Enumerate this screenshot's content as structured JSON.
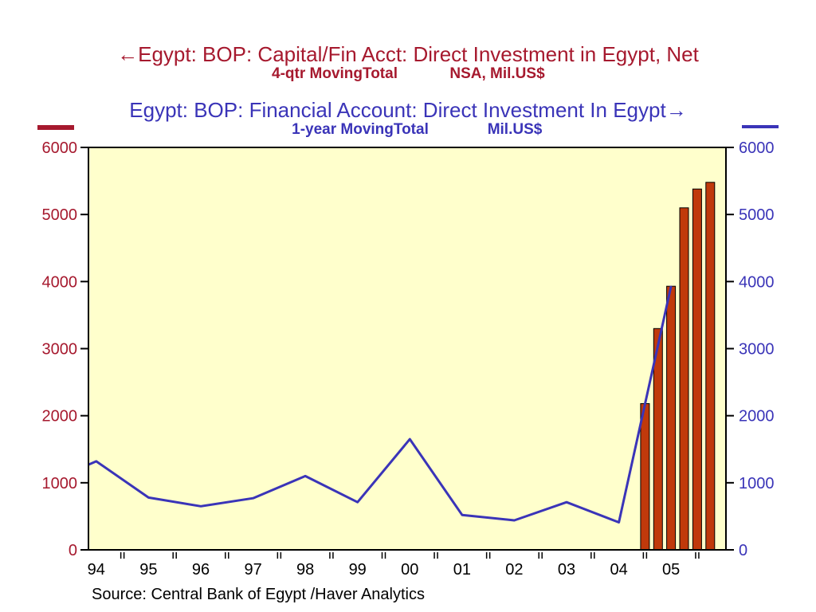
{
  "chart_data": {
    "type": "bar+line",
    "title_left": {
      "main": "Egypt: BOP: Capital/Fin Acct: Direct Investment in Egypt, Net",
      "sub1": "4-qtr MovingTotal",
      "sub2": "NSA, Mil.US$"
    },
    "title_right": {
      "main": "Egypt: BOP: Financial Account: Direct Investment In Egypt",
      "sub1": "1-year MovingTotal",
      "sub2": "Mil.US$"
    },
    "source": "Source:  Central Bank of Egypt /Haver Analytics",
    "x_range": [
      1993.85,
      2006.05
    ],
    "ylim_left": [
      0,
      6000
    ],
    "ylim_right": [
      0,
      6000
    ],
    "y_ticks_left": [
      "0",
      "1000",
      "2000",
      "3000",
      "4000",
      "5000",
      "6000"
    ],
    "y_ticks_right": [
      "0",
      "1000",
      "2000",
      "3000",
      "4000",
      "5000",
      "6000"
    ],
    "x_tick_labels": [
      "94",
      "95",
      "96",
      "97",
      "98",
      "99",
      "00",
      "01",
      "02",
      "03",
      "04",
      "05"
    ],
    "x_tick_years": [
      1994,
      1995,
      1996,
      1997,
      1998,
      1999,
      2000,
      2001,
      2002,
      2003,
      2004,
      2005
    ],
    "series_bar": {
      "axis": "left",
      "color": "#c0390b",
      "points": [
        {
          "x": 2004.5,
          "y": 2180
        },
        {
          "x": 2004.75,
          "y": 3300
        },
        {
          "x": 2005.0,
          "y": 3930
        },
        {
          "x": 2005.25,
          "y": 5100
        },
        {
          "x": 2005.5,
          "y": 5380
        },
        {
          "x": 2005.75,
          "y": 5480
        }
      ]
    },
    "series_line": {
      "axis": "right",
      "color": "#3a34b8",
      "points": [
        {
          "x": 1993.85,
          "y": 1270
        },
        {
          "x": 1994.0,
          "y": 1320
        },
        {
          "x": 1995.0,
          "y": 780
        },
        {
          "x": 1996.0,
          "y": 650
        },
        {
          "x": 1997.0,
          "y": 770
        },
        {
          "x": 1998.0,
          "y": 1100
        },
        {
          "x": 1999.0,
          "y": 710
        },
        {
          "x": 2000.0,
          "y": 1650
        },
        {
          "x": 2001.0,
          "y": 520
        },
        {
          "x": 2002.0,
          "y": 440
        },
        {
          "x": 2003.0,
          "y": 710
        },
        {
          "x": 2004.0,
          "y": 410
        },
        {
          "x": 2005.0,
          "y": 3930
        }
      ]
    },
    "colors": {
      "plot_background": "#ffffcc",
      "left_axis": "#a6192e",
      "right_axis": "#3a34b8",
      "frame": "#000000"
    }
  }
}
